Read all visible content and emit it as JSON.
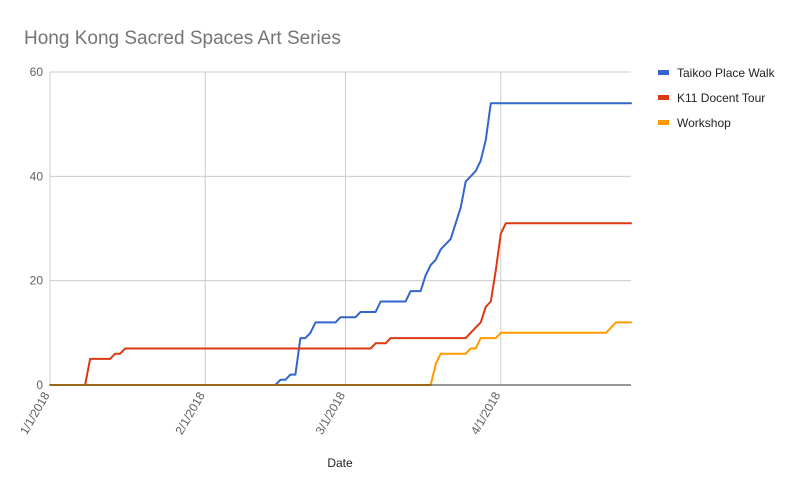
{
  "chart_data": {
    "type": "line",
    "title": "Hong Kong Sacred Spaces Art Series",
    "xlabel": "Date",
    "ylabel": "",
    "ylim": [
      0,
      60
    ],
    "yticks": [
      "0",
      "20",
      "40",
      "60"
    ],
    "xlim": [
      "2018-01-01",
      "2018-04-27"
    ],
    "xticks": [
      {
        "date": "2018-01-01",
        "label": "1/1/2018"
      },
      {
        "date": "2018-02-01",
        "label": "2/1/2018"
      },
      {
        "date": "2018-03-01",
        "label": "3/1/2018"
      },
      {
        "date": "2018-04-01",
        "label": "4/1/2018"
      }
    ],
    "grid": true,
    "legend_position": "right",
    "series": [
      {
        "name": "Taikoo Place Walk",
        "color": "#3366cc",
        "points": [
          [
            "2018-01-01",
            0
          ],
          [
            "2018-02-15",
            0
          ],
          [
            "2018-02-16",
            1
          ],
          [
            "2018-02-17",
            1
          ],
          [
            "2018-02-18",
            2
          ],
          [
            "2018-02-19",
            2
          ],
          [
            "2018-02-20",
            9
          ],
          [
            "2018-02-21",
            9
          ],
          [
            "2018-02-22",
            10
          ],
          [
            "2018-02-23",
            12
          ],
          [
            "2018-02-27",
            12
          ],
          [
            "2018-02-28",
            13
          ],
          [
            "2018-03-03",
            13
          ],
          [
            "2018-03-04",
            14
          ],
          [
            "2018-03-07",
            14
          ],
          [
            "2018-03-08",
            16
          ],
          [
            "2018-03-13",
            16
          ],
          [
            "2018-03-14",
            18
          ],
          [
            "2018-03-16",
            18
          ],
          [
            "2018-03-17",
            21
          ],
          [
            "2018-03-18",
            23
          ],
          [
            "2018-03-19",
            24
          ],
          [
            "2018-03-20",
            26
          ],
          [
            "2018-03-22",
            28
          ],
          [
            "2018-03-24",
            34
          ],
          [
            "2018-03-25",
            39
          ],
          [
            "2018-03-26",
            40
          ],
          [
            "2018-03-27",
            41
          ],
          [
            "2018-03-28",
            43
          ],
          [
            "2018-03-29",
            47
          ],
          [
            "2018-03-30",
            54
          ],
          [
            "2018-03-31",
            54
          ],
          [
            "2018-04-27",
            54
          ]
        ]
      },
      {
        "name": "K11 Docent Tour",
        "color": "#dc3912",
        "points": [
          [
            "2018-01-01",
            0
          ],
          [
            "2018-01-08",
            0
          ],
          [
            "2018-01-09",
            5
          ],
          [
            "2018-01-12",
            5
          ],
          [
            "2018-01-13",
            5
          ],
          [
            "2018-01-14",
            6
          ],
          [
            "2018-01-15",
            6
          ],
          [
            "2018-01-16",
            7
          ],
          [
            "2018-03-06",
            7
          ],
          [
            "2018-03-07",
            8
          ],
          [
            "2018-03-09",
            8
          ],
          [
            "2018-03-10",
            9
          ],
          [
            "2018-03-25",
            9
          ],
          [
            "2018-03-26",
            10
          ],
          [
            "2018-03-27",
            11
          ],
          [
            "2018-03-28",
            12
          ],
          [
            "2018-03-29",
            15
          ],
          [
            "2018-03-30",
            16
          ],
          [
            "2018-03-31",
            22
          ],
          [
            "2018-04-01",
            29
          ],
          [
            "2018-04-02",
            31
          ],
          [
            "2018-04-27",
            31
          ]
        ]
      },
      {
        "name": "Workshop",
        "color": "#ff9900",
        "points": [
          [
            "2018-01-01",
            0
          ],
          [
            "2018-03-18",
            0
          ],
          [
            "2018-03-19",
            4
          ],
          [
            "2018-03-20",
            6
          ],
          [
            "2018-03-25",
            6
          ],
          [
            "2018-03-26",
            7
          ],
          [
            "2018-03-27",
            7
          ],
          [
            "2018-03-28",
            9
          ],
          [
            "2018-03-31",
            9
          ],
          [
            "2018-04-01",
            10
          ],
          [
            "2018-04-22",
            10
          ],
          [
            "2018-04-24",
            12
          ],
          [
            "2018-04-27",
            12
          ]
        ]
      }
    ]
  }
}
